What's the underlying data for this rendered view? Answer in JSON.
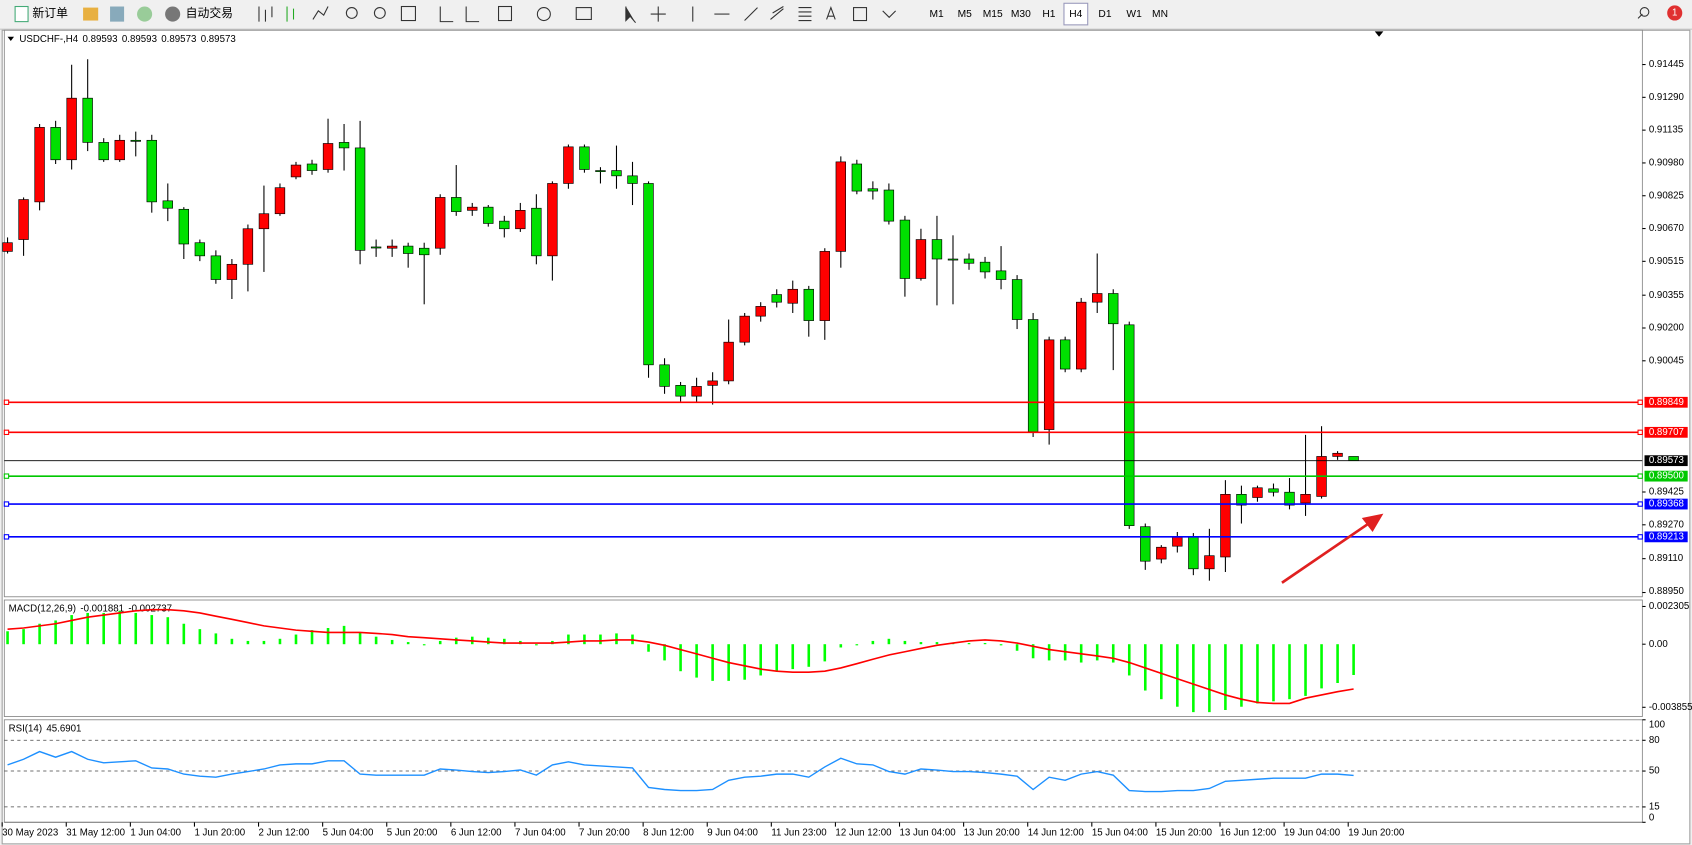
{
  "toolbar": {
    "buttons": [
      "新订单",
      "自动交易"
    ],
    "timeframes": [
      "M1",
      "M5",
      "M15",
      "M30",
      "H1",
      "H4",
      "D1",
      "W1",
      "MN"
    ],
    "active_timeframe": "H4",
    "notifications": 1
  },
  "chart_data": [
    {
      "type": "candlestick",
      "title": "USDCHF-,H4",
      "up_color": "#ff0000",
      "down_color": "#00e000",
      "categories": [
        "30 May 2023",
        null,
        null,
        null,
        "31 May 12:00",
        null,
        null,
        null,
        "1 Jun 04:00",
        null,
        null,
        null,
        "1 Jun 20:00",
        null,
        null,
        null,
        "2 Jun 12:00",
        null,
        null,
        null,
        "5 Jun 04:00",
        null,
        null,
        null,
        "5 Jun 20:00",
        null,
        null,
        null,
        "6 Jun 12:00",
        null,
        null,
        null,
        "7 Jun 04:00",
        null,
        null,
        null,
        "7 Jun 20:00",
        null,
        null,
        null,
        "8 Jun 12:00",
        null,
        null,
        null,
        "9 Jun 04:00",
        null,
        null,
        null,
        "11 Jun 23:00",
        null,
        null,
        null,
        "12 Jun 12:00",
        null,
        null,
        null,
        "13 Jun 04:00",
        null,
        null,
        null,
        "13 Jun 20:00",
        null,
        null,
        null,
        "14 Jun 12:00",
        null,
        null,
        null,
        "15 Jun 04:00",
        null,
        null,
        null,
        "15 Jun 20:00",
        null,
        null,
        null,
        "16 Jun 12:00",
        null,
        null,
        null,
        "19 Jun 04:00",
        null,
        null,
        null,
        "19 Jun 20:00"
      ],
      "open": [
        0.90562,
        0.90618,
        0.90796,
        0.91148,
        0.90995,
        0.91286,
        0.91077,
        0.90995,
        0.91087,
        0.91087,
        0.90801,
        0.90761,
        0.90603,
        0.90541,
        0.90429,
        0.90501,
        0.90669,
        0.9074,
        0.90914,
        0.90975,
        0.90949,
        0.91077,
        0.91051,
        0.90583,
        0.90577,
        0.90587,
        0.90577,
        0.90577,
        0.90817,
        0.90756,
        0.90771,
        0.90705,
        0.90669,
        0.90766,
        0.90541,
        0.90883,
        0.91056,
        0.90944,
        0.90944,
        0.90919,
        0.90883,
        0.90026,
        0.89929,
        0.89878,
        0.89929,
        0.8995,
        0.90133,
        0.90256,
        0.90358,
        0.90317,
        0.90383,
        0.90235,
        0.90562,
        0.90975,
        0.90858,
        0.90852,
        0.9071,
        0.90434,
        0.90618,
        0.90526,
        0.90526,
        0.90511,
        0.9047,
        0.90429,
        0.9024,
        0.8972,
        0.90144,
        0.90006,
        0.90322,
        0.90363,
        0.90215,
        0.89261,
        0.89108,
        0.89169,
        0.89215,
        0.89062,
        0.89118,
        0.89414,
        0.89399,
        0.8944,
        0.89424,
        0.89373,
        0.89404,
        0.89593,
        0.89593
      ],
      "high": [
        0.90628,
        0.90817,
        0.91164,
        0.91179,
        0.91444,
        0.9147,
        0.91097,
        0.91113,
        0.91128,
        0.91113,
        0.90883,
        0.90771,
        0.90618,
        0.90567,
        0.90526,
        0.90689,
        0.90873,
        0.90883,
        0.90985,
        0.90995,
        0.91189,
        0.91164,
        0.91179,
        0.90618,
        0.90618,
        0.90603,
        0.90603,
        0.90832,
        0.9097,
        0.90791,
        0.90781,
        0.9073,
        0.90791,
        0.90832,
        0.90893,
        0.91067,
        0.91067,
        0.9096,
        0.91062,
        0.90985,
        0.90893,
        0.90057,
        0.89945,
        0.89965,
        0.89991,
        0.9024,
        0.90271,
        0.90322,
        0.90383,
        0.90424,
        0.90399,
        0.90577,
        0.91011,
        0.90995,
        0.90893,
        0.90883,
        0.9073,
        0.90669,
        0.9073,
        0.90638,
        0.90552,
        0.90536,
        0.90587,
        0.9045,
        0.90271,
        0.90159,
        0.90159,
        0.90342,
        0.90552,
        0.90383,
        0.9023,
        0.89276,
        0.89174,
        0.89236,
        0.89231,
        0.89251,
        0.89481,
        0.89455,
        0.89455,
        0.89465,
        0.89491,
        0.89695,
        0.89736,
        0.89618,
        0.89593
      ],
      "low": [
        0.90552,
        0.90541,
        0.90756,
        0.90975,
        0.90949,
        0.91036,
        0.90985,
        0.90985,
        0.91011,
        0.90745,
        0.90705,
        0.90526,
        0.90516,
        0.90409,
        0.90337,
        0.90373,
        0.90465,
        0.9073,
        0.90903,
        0.90924,
        0.90934,
        0.90944,
        0.90501,
        0.90536,
        0.90536,
        0.90485,
        0.90312,
        0.90546,
        0.9073,
        0.9073,
        0.90679,
        0.90628,
        0.90654,
        0.90501,
        0.90424,
        0.90858,
        0.90934,
        0.90883,
        0.90858,
        0.90781,
        0.89965,
        0.89889,
        0.89853,
        0.89848,
        0.89838,
        0.89934,
        0.90118,
        0.9023,
        0.90297,
        0.90271,
        0.90159,
        0.90144,
        0.90485,
        0.90832,
        0.90807,
        0.90689,
        0.90348,
        0.90424,
        0.90307,
        0.90312,
        0.90475,
        0.90434,
        0.90383,
        0.90195,
        0.89685,
        0.89649,
        0.89991,
        0.89991,
        0.90271,
        0.90001,
        0.89251,
        0.89057,
        0.89088,
        0.89139,
        0.89032,
        0.89006,
        0.89047,
        0.89276,
        0.89379,
        0.89404,
        0.89343,
        0.89312,
        0.89394,
        0.89577,
        0.89573
      ],
      "close": [
        0.90603,
        0.90807,
        0.91148,
        0.90995,
        0.91286,
        0.91077,
        0.90995,
        0.91087,
        0.91082,
        0.90796,
        0.90766,
        0.90597,
        0.90541,
        0.90429,
        0.90501,
        0.90669,
        0.9074,
        0.90863,
        0.9097,
        0.90944,
        0.91072,
        0.91051,
        0.90567,
        0.90578,
        0.90587,
        0.90552,
        0.90546,
        0.90817,
        0.9075,
        0.90771,
        0.90694,
        0.90669,
        0.90756,
        0.90541,
        0.90883,
        0.91056,
        0.90949,
        0.90939,
        0.90919,
        0.90883,
        0.90026,
        0.89924,
        0.89878,
        0.89924,
        0.8995,
        0.90133,
        0.90256,
        0.90302,
        0.90322,
        0.90383,
        0.90235,
        0.90562,
        0.90985,
        0.90847,
        0.90847,
        0.90705,
        0.90434,
        0.90618,
        0.90526,
        0.90521,
        0.90506,
        0.90465,
        0.90429,
        0.9024,
        0.8971,
        0.90144,
        0.90006,
        0.90322,
        0.90363,
        0.9022,
        0.89266,
        0.89098,
        0.89164,
        0.89215,
        0.89062,
        0.89124,
        0.89414,
        0.89363,
        0.89445,
        0.89424,
        0.89363,
        0.89414,
        0.89593,
        0.89608,
        0.89573
      ],
      "ylim": [
        0.88935,
        0.91607
      ],
      "yticks": [
        0.91445,
        {
          "value": 0.9129,
          "label": "0.91290"
        },
        0.91135,
        {
          "value": 0.9098,
          "label": "0.90980"
        },
        0.90825,
        {
          "value": 0.9067,
          "label": "0.90670"
        },
        0.90515,
        0.90355,
        {
          "value": 0.902,
          "label": "0.90200"
        },
        0.90045,
        0.89425,
        {
          "value": 0.8927,
          "label": "0.89270"
        },
        {
          "value": 0.8911,
          "label": "0.89110"
        },
        {
          "value": 0.8895,
          "label": "0.88950"
        }
      ],
      "hlines": [
        {
          "value": 0.89849,
          "color": "#ff0000"
        },
        {
          "value": 0.89707,
          "color": "#ff0000"
        },
        {
          "value": 0.895,
          "label": "0.89500",
          "color": "#00c800"
        },
        {
          "value": 0.89368,
          "color": "#0000ff"
        },
        {
          "value": 0.89213,
          "color": "#0000ff"
        }
      ],
      "current_color": "#000000"
    },
    {
      "type": "macd",
      "title": "MACD(12,26,9)",
      "series": [
        {
          "color": "#00ff00",
          "values": [
            0.00079,
            0.00092,
            0.00125,
            0.00145,
            0.00178,
            0.00191,
            0.00191,
            0.00204,
            0.00191,
            0.00178,
            0.00165,
            0.00125,
            0.00092,
            0.00066,
            0.00033,
            0.0002,
            0.0002,
            0.00033,
            0.00059,
            0.00086,
            0.00099,
            0.00112,
            0.00072,
            0.00046,
            0.00026,
            0.00013,
            -7e-05,
            0.0002,
            0.0004,
            0.00046,
            0.0004,
            0.00033,
            0.0002,
            -7e-05,
            0.0002,
            0.00059,
            0.00059,
            0.00059,
            0.00066,
            0.00059,
            -0.00046,
            -0.00099,
            -0.00165,
            -0.00204,
            -0.00224,
            -0.00224,
            -0.00217,
            -0.00191,
            -0.00165,
            -0.00152,
            -0.00138,
            -0.00105,
            -0.0002,
            -7e-05,
            0.0002,
            0.00033,
            0.0002,
            0.00013,
            0.00013,
            7e-05,
            7e-05,
            7e-05,
            -7e-05,
            -0.0004,
            -0.00086,
            -0.00099,
            -0.00099,
            -0.00112,
            -0.00099,
            -0.00112,
            -0.00191,
            -0.00283,
            -0.00336,
            -0.00382,
            -0.00415,
            -0.00415,
            -0.00402,
            -0.00382,
            -0.00362,
            -0.00349,
            -0.00336,
            -0.00316,
            -0.0027,
            -0.00237,
            -0.001881
          ]
        },
        {
          "color": "#ff0000",
          "values": [
            0.00092,
            0.00099,
            0.00112,
            0.00125,
            0.00145,
            0.00165,
            0.00178,
            0.00191,
            0.00204,
            0.00211,
            0.00211,
            0.00204,
            0.00191,
            0.00171,
            0.00152,
            0.00132,
            0.00112,
            0.00099,
            0.00086,
            0.00079,
            0.00072,
            0.00072,
            0.00072,
            0.00066,
            0.00059,
            0.00046,
            0.0004,
            0.00033,
            0.00026,
            0.0002,
            0.00013,
            7e-05,
            7e-05,
            7e-05,
            7e-05,
            0.00013,
            0.0002,
            0.0002,
            0.00026,
            0.00026,
            0.00013,
            -7e-05,
            -0.00033,
            -0.00059,
            -0.00086,
            -0.00112,
            -0.00132,
            -0.00152,
            -0.00165,
            -0.00171,
            -0.00171,
            -0.00165,
            -0.00145,
            -0.00119,
            -0.00092,
            -0.00066,
            -0.00046,
            -0.00026,
            -7e-05,
            7e-05,
            0.0002,
            0.00026,
            0.0002,
            7e-05,
            -0.00013,
            -0.00033,
            -0.00046,
            -0.00059,
            -0.00072,
            -0.00086,
            -0.00112,
            -0.00145,
            -0.00178,
            -0.00211,
            -0.00244,
            -0.00277,
            -0.0031,
            -0.00336,
            -0.00356,
            -0.00362,
            -0.00362,
            -0.0033,
            -0.0031,
            -0.0029,
            -0.002737
          ]
        }
      ],
      "ylim": [
        -0.00442,
        0.0027
      ],
      "yticks": [
        0.002305,
        {
          "value": 0,
          "label": "0.00"
        },
        -0.003855
      ]
    },
    {
      "type": "line",
      "title": "RSI(14)",
      "series": [
        {
          "color": "#1e90ff",
          "values": [
            56,
            61.5,
            69,
            63.5,
            69,
            61.5,
            58,
            59,
            60,
            53,
            52,
            47,
            45,
            44,
            47,
            49.5,
            52,
            56,
            57,
            57,
            60,
            60,
            47,
            46,
            46,
            46,
            46,
            52,
            51,
            49.5,
            48.5,
            49.5,
            51,
            46,
            56,
            59,
            56,
            55,
            54,
            53,
            34,
            32,
            31,
            31,
            32,
            41,
            44,
            45,
            47,
            47,
            44,
            54,
            62.5,
            57,
            56,
            49.5,
            47,
            52,
            51,
            49.5,
            49.5,
            48.5,
            47,
            45,
            32,
            44,
            41,
            47,
            49.5,
            46,
            31,
            30,
            30,
            31,
            31,
            33,
            40,
            41,
            42,
            43,
            43,
            43,
            47,
            47,
            45.6901
          ]
        }
      ],
      "ylim": [
        0,
        100
      ],
      "yticks": [
        100,
        80,
        50,
        15,
        0
      ],
      "grid": "dashed"
    }
  ]
}
